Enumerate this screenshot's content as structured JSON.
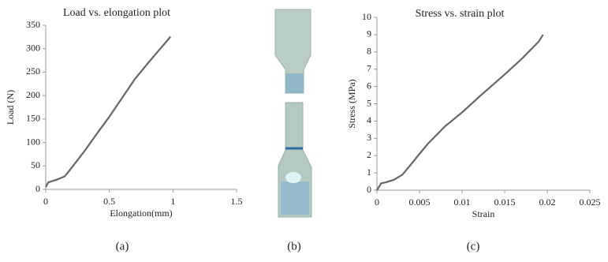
{
  "chart_data": [
    {
      "type": "line",
      "title": "Load vs. elongation plot",
      "x_label": "Elongation(mm)",
      "y_label": "Load (N)",
      "x": [
        0,
        0.02,
        0.1,
        0.15,
        0.2,
        0.3,
        0.4,
        0.5,
        0.6,
        0.7,
        0.8,
        0.9,
        0.97,
        0.98
      ],
      "values": [
        5,
        15,
        22,
        28,
        45,
        80,
        118,
        155,
        195,
        235,
        268,
        300,
        322,
        326
      ],
      "color": "#666666",
      "xlim": [
        0,
        1.5
      ],
      "xticks": [
        0,
        0.5,
        1,
        1.5
      ],
      "ylim": [
        0,
        350
      ],
      "yticks": [
        0,
        50,
        100,
        150,
        200,
        250,
        300,
        350
      ],
      "grid": false
    },
    {
      "type": "line",
      "title": "Stress vs. strain plot",
      "x_label": "Strain",
      "y_label": "Stress (MPa)",
      "x": [
        0,
        0.0005,
        0.001,
        0.002,
        0.003,
        0.004,
        0.005,
        0.006,
        0.008,
        0.01,
        0.012,
        0.015,
        0.017,
        0.019,
        0.0195
      ],
      "values": [
        0,
        0.4,
        0.45,
        0.6,
        0.9,
        1.5,
        2.1,
        2.7,
        3.7,
        4.5,
        5.4,
        6.7,
        7.6,
        8.6,
        9
      ],
      "color": "#666666",
      "xlim": [
        0,
        0.025
      ],
      "xticks": [
        0,
        0.005,
        0.01,
        0.015,
        0.02,
        0.025
      ],
      "ylim": [
        0,
        10
      ],
      "yticks": [
        0,
        1,
        2,
        3,
        4,
        5,
        6,
        7,
        8,
        9,
        10
      ],
      "grid": false
    }
  ],
  "captions": [
    "(a)",
    "(b)",
    "(c)"
  ]
}
